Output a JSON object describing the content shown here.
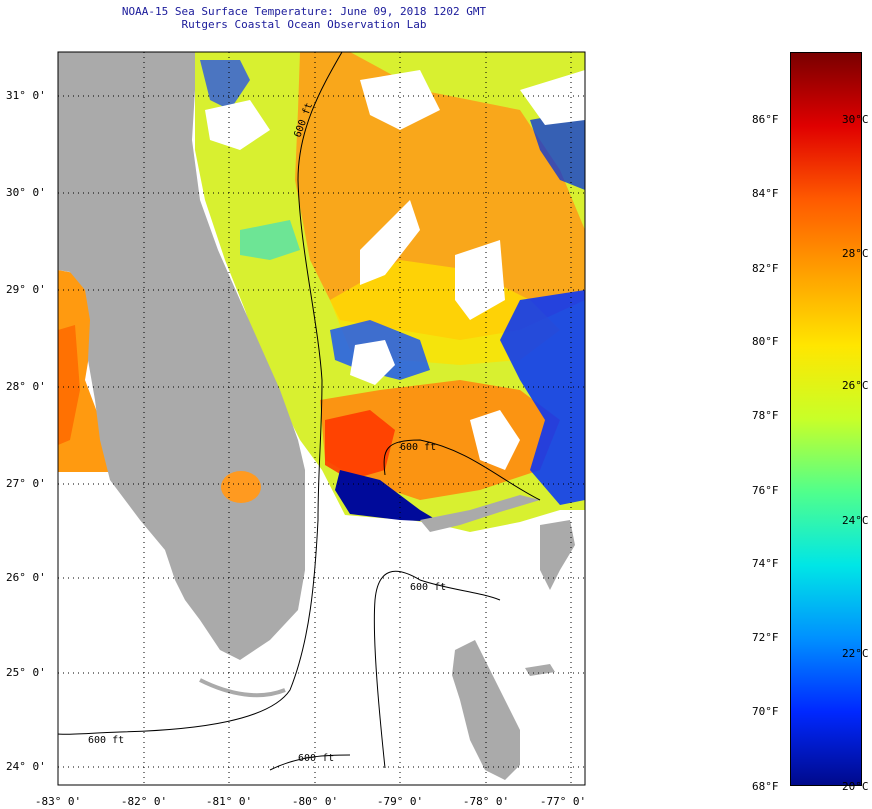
{
  "title": {
    "line1": "NOAA-15 Sea Surface Temperature:  June 09, 2018 1202 GMT",
    "line2": "Rutgers Coastal Ocean Observation Lab"
  },
  "map": {
    "lat_labels": [
      "31° 0'",
      "30° 0'",
      "29° 0'",
      "28° 0'",
      "27° 0'",
      "26° 0'",
      "25° 0'",
      "24° 0'"
    ],
    "lon_labels": [
      "-83° 0'",
      "-82° 0'",
      "-81° 0'",
      "-80° 0'",
      "-79° 0'",
      "-78° 0'",
      "-77° 0'"
    ],
    "contour_labels": [
      "600 ft",
      "600 ft",
      "600 ft",
      "600 ft",
      "600 ft"
    ],
    "land_color": "#aaaaaa",
    "no_data_color": "#ffffff"
  },
  "colorbar": {
    "fahrenheit_labels": [
      "86°F",
      "84°F",
      "82°F",
      "80°F",
      "78°F",
      "76°F",
      "74°F",
      "72°F",
      "70°F",
      "68°F"
    ],
    "celsius_labels": [
      "30°C",
      "28°C",
      "26°C",
      "24°C",
      "22°C",
      "20°C"
    ],
    "colors": [
      "#7a0000",
      "#e00000",
      "#ff5a00",
      "#ffa000",
      "#ffe600",
      "#c8ff28",
      "#50ff8c",
      "#00e6e6",
      "#0090ff",
      "#0028ff",
      "#000a8c"
    ]
  }
}
